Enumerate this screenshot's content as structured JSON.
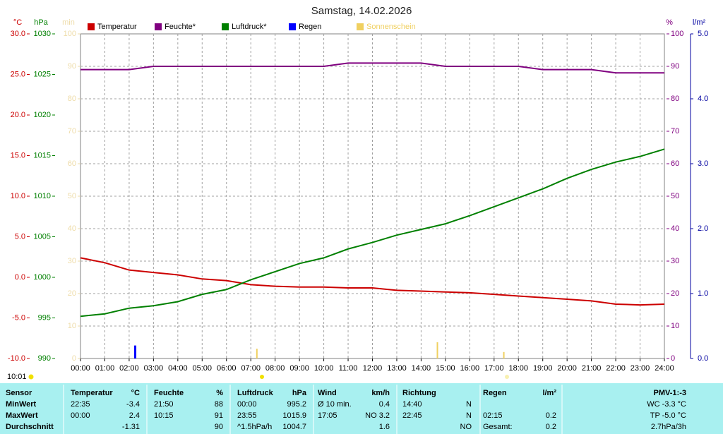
{
  "chart_data": {
    "type": "line",
    "title": "Samstag, 14.02.2026",
    "time_label": "10:01",
    "axes": [
      {
        "label": "°C",
        "color": "#cc0000",
        "lim": [
          -10,
          30
        ],
        "ticks": [
          {
            "value": -10,
            "label": "-10.0"
          },
          {
            "value": -5,
            "label": "-5.0"
          },
          {
            "value": 0,
            "label": "0.0"
          },
          {
            "value": 5,
            "label": "5.0"
          },
          {
            "value": 10,
            "label": "10.0"
          },
          {
            "value": 15,
            "label": "15.0"
          },
          {
            "value": 20,
            "label": "20.0"
          },
          {
            "value": 25,
            "label": "25.0"
          },
          {
            "value": 30,
            "label": "30.0"
          }
        ]
      },
      {
        "label": "hPa",
        "color": "#008000",
        "lim": [
          990,
          1030
        ],
        "ticks": [
          990,
          995,
          1000,
          1005,
          1010,
          1015,
          1020,
          1025,
          1030
        ]
      },
      {
        "label": "min",
        "color": "#eedca8",
        "lim": [
          0,
          100
        ],
        "ticks": [
          0,
          10,
          20,
          30,
          40,
          50,
          60,
          70,
          80,
          90,
          100
        ]
      },
      {
        "label": "%",
        "color": "#800080",
        "lim": [
          0,
          100
        ],
        "ticks": [
          0,
          10,
          20,
          30,
          40,
          50,
          60,
          70,
          80,
          90,
          100
        ]
      },
      {
        "label": "l/m²",
        "color": "#0000a0",
        "lim": [
          0,
          5
        ],
        "ticks": [
          {
            "value": 0,
            "label": "0.0"
          },
          {
            "value": 1,
            "label": "1.0"
          },
          {
            "value": 2,
            "label": "2.0"
          },
          {
            "value": 3,
            "label": "3.0"
          },
          {
            "value": 4,
            "label": "4.0"
          },
          {
            "value": 5,
            "label": "5.0"
          }
        ]
      }
    ],
    "xlim": [
      0,
      24
    ],
    "xticks": [
      {
        "value": 0,
        "label": "00:00"
      },
      {
        "value": 1,
        "label": "01:00"
      },
      {
        "value": 2,
        "label": "02:00"
      },
      {
        "value": 3,
        "label": "03:00"
      },
      {
        "value": 4,
        "label": "04:00"
      },
      {
        "value": 5,
        "label": "05:00"
      },
      {
        "value": 6,
        "label": "06:00"
      },
      {
        "value": 7,
        "label": "07:00"
      },
      {
        "value": 8,
        "label": "08:00"
      },
      {
        "value": 9,
        "label": "09:00"
      },
      {
        "value": 10,
        "label": "10:00"
      },
      {
        "value": 11,
        "label": "11:00"
      },
      {
        "value": 12,
        "label": "12:00"
      },
      {
        "value": 13,
        "label": "13:00"
      },
      {
        "value": 14,
        "label": "14:00"
      },
      {
        "value": 15,
        "label": "15:00"
      },
      {
        "value": 16,
        "label": "16:00"
      },
      {
        "value": 17,
        "label": "17:00"
      },
      {
        "value": 18,
        "label": "18:00"
      },
      {
        "value": 19,
        "label": "19:00"
      },
      {
        "value": 20,
        "label": "20:00"
      },
      {
        "value": 21,
        "label": "21:00"
      },
      {
        "value": 22,
        "label": "22:00"
      },
      {
        "value": 23,
        "label": "23:00"
      },
      {
        "value": 24,
        "label": "24:00"
      }
    ],
    "grid": true,
    "x": [
      0,
      1,
      2,
      3,
      4,
      5,
      6,
      7,
      8,
      9,
      10,
      11,
      12,
      13,
      14,
      15,
      16,
      17,
      18,
      19,
      20,
      21,
      22,
      23,
      24
    ],
    "series": [
      {
        "name": "Temperatur",
        "color": "#cc0000",
        "axis": 0,
        "type": "line",
        "values": [
          2.4,
          1.8,
          0.9,
          0.6,
          0.3,
          -0.2,
          -0.4,
          -0.9,
          -1.1,
          -1.2,
          -1.2,
          -1.3,
          -1.3,
          -1.6,
          -1.7,
          -1.8,
          -1.9,
          -2.1,
          -2.3,
          -2.5,
          -2.7,
          -2.9,
          -3.3,
          -3.4,
          -3.3
        ]
      },
      {
        "name": "Feuchte*",
        "color": "#800080",
        "axis": 3,
        "type": "line",
        "values": [
          89,
          89,
          89,
          90,
          90,
          90,
          90,
          90,
          90,
          90,
          90,
          91,
          91,
          91,
          91,
          90,
          90,
          90,
          90,
          89,
          89,
          89,
          88,
          88,
          88
        ]
      },
      {
        "name": "Luftdruck*",
        "color": "#008000",
        "axis": 1,
        "type": "line",
        "values": [
          995.2,
          995.5,
          996.2,
          996.5,
          997.0,
          997.9,
          998.5,
          999.7,
          1000.7,
          1001.7,
          1002.4,
          1003.5,
          1004.3,
          1005.2,
          1005.9,
          1006.6,
          1007.6,
          1008.7,
          1009.8,
          1010.9,
          1012.2,
          1013.3,
          1014.2,
          1014.9,
          1015.8
        ]
      },
      {
        "name": "Regen",
        "color": "#0000ff",
        "axis": 4,
        "type": "bar",
        "x": [
          2.25
        ],
        "values": [
          0.2
        ]
      },
      {
        "name": "Sonnenschein",
        "color": "#f0d060",
        "axis": 2,
        "type": "bar",
        "x": [
          7.25,
          14.67,
          17.4
        ],
        "values": [
          3,
          5,
          2
        ]
      }
    ]
  },
  "table": {
    "rows": [
      [
        "Sensor",
        "Temperatur",
        "°C",
        "Feuchte",
        "%",
        "Luftdruck",
        "hPa",
        "Wind",
        "km/h",
        "Richtung",
        null,
        "Regen",
        "l/m²",
        "PMV-1:-3"
      ],
      [
        "MinWert",
        "22:35",
        "-3.4",
        "21:50",
        "88",
        "00:00",
        "995.2",
        "Ø 10 min.",
        "0.4",
        "14:40",
        "N",
        null,
        null,
        "WC -3.3 °C"
      ],
      [
        "MaxWert",
        "00:00",
        "2.4",
        "10:15",
        "91",
        "23:55",
        "1015.9",
        "17:05",
        "NO 3.2",
        "22:45",
        "N",
        "02:15",
        "0.2",
        "TP -5.0 °C"
      ],
      [
        "Durchschnitt",
        null,
        "-1.31",
        null,
        "90",
        "^1.5hPa/h",
        "1004.7",
        null,
        "1.6",
        null,
        "NO",
        "Gesamt:",
        "0.2",
        "2.7hPa/3h"
      ]
    ]
  }
}
